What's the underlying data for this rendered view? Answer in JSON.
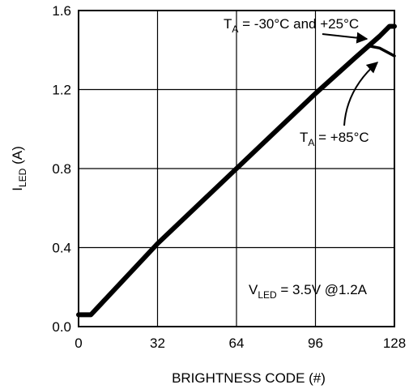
{
  "chart_data": {
    "type": "line",
    "title": "",
    "xlabel": "BRIGHTNESS CODE (#)",
    "ylabel": {
      "main": "I",
      "sub": "LED",
      "unit": " (A)"
    },
    "xlim": [
      0,
      128
    ],
    "ylim": [
      0,
      1.6
    ],
    "x_ticks": [
      "0",
      "32",
      "64",
      "96",
      "128"
    ],
    "y_ticks": [
      "0.0",
      "0.4",
      "0.8",
      "1.2",
      "1.6"
    ],
    "grid": true,
    "series": [
      {
        "x": [
          0,
          5,
          32,
          64,
          96,
          112,
          122,
          126,
          128
        ],
        "y": [
          0.06,
          0.06,
          0.42,
          0.8,
          1.18,
          1.36,
          1.47,
          1.52,
          1.52
        ]
      },
      {
        "x": [
          112,
          118,
          122,
          125,
          128
        ],
        "y": [
          1.36,
          1.42,
          1.41,
          1.39,
          1.37
        ]
      }
    ],
    "annotations": [
      {
        "pre": "T",
        "sub": "A",
        "post": " = -30°C and +25°C"
      },
      {
        "pre": "T",
        "sub": "A",
        "post": " = +85°C"
      },
      {
        "pre": "V",
        "sub": "LED",
        "post": " = 3.5V @1.2A"
      }
    ]
  }
}
